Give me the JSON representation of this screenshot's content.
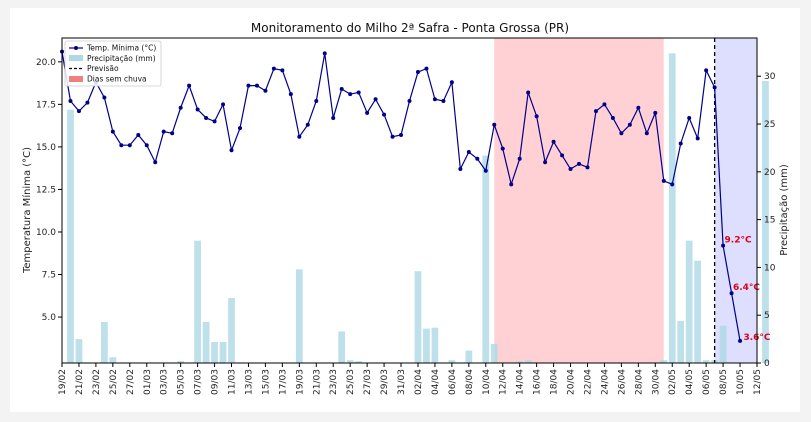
{
  "chart_data": {
    "type": "line",
    "title": "Monitoramento do Milho 2ª Safra - Ponta Grossa (PR)",
    "ylabel_left": "Temperatura Mínima (°C)",
    "ylabel_right": "Precipitação (mm)",
    "ylim_left": [
      2.3,
      21.4
    ],
    "ylim_right": [
      0,
      34
    ],
    "yticks_left": [
      "5.0",
      "7.5",
      "10.0",
      "12.5",
      "15.0",
      "17.5",
      "20.0"
    ],
    "yticks_right": [
      "0",
      "5",
      "10",
      "15",
      "20",
      "25",
      "30"
    ],
    "start_date": "2025-02-19",
    "end_date": "2025-05-12",
    "xtick_labels": [
      "19/02",
      "21/02",
      "23/02",
      "25/02",
      "27/02",
      "01/03",
      "03/03",
      "05/03",
      "07/03",
      "09/03",
      "11/03",
      "13/03",
      "15/03",
      "17/03",
      "19/03",
      "21/03",
      "23/03",
      "25/03",
      "27/03",
      "29/03",
      "31/03",
      "02/04",
      "04/04",
      "06/04",
      "08/04",
      "10/04",
      "12/04",
      "14/04",
      "16/04",
      "18/04",
      "20/04",
      "22/04",
      "24/04",
      "26/04",
      "28/04",
      "30/04",
      "02/05",
      "04/05",
      "06/05",
      "08/05",
      "10/05",
      "12/05"
    ],
    "temperature_series": {
      "name": "Temp. Mínima (°C)",
      "color": "#00008b",
      "values": [
        20.6,
        17.7,
        17.1,
        17.6,
        18.8,
        17.9,
        15.9,
        15.1,
        15.1,
        15.7,
        15.1,
        14.1,
        15.9,
        15.8,
        17.3,
        18.6,
        17.2,
        16.7,
        16.5,
        17.5,
        14.8,
        16.1,
        18.6,
        18.6,
        18.3,
        19.6,
        19.5,
        18.1,
        15.6,
        16.3,
        17.7,
        20.5,
        16.7,
        18.4,
        18.1,
        18.2,
        17.0,
        17.8,
        16.9,
        15.6,
        15.7,
        17.7,
        19.4,
        19.6,
        17.8,
        17.7,
        18.8,
        13.7,
        14.7,
        14.3,
        13.6,
        16.3,
        14.9,
        12.8,
        14.3,
        18.2,
        16.8,
        14.1,
        15.3,
        14.5,
        13.7,
        14.0,
        13.8,
        17.1,
        17.5,
        16.7,
        15.8,
        16.3,
        17.3,
        15.8,
        17.0,
        13.0,
        12.8,
        15.2,
        16.7,
        15.5,
        19.5,
        18.5,
        9.2,
        6.4,
        3.6
      ]
    },
    "precipitation_series": {
      "name": "Precipitação (mm)",
      "color": "#add8e6",
      "bars": [
        [
          1,
          26.5
        ],
        [
          2,
          2.5
        ],
        [
          5,
          4.3
        ],
        [
          6,
          0.6
        ],
        [
          14,
          0.2
        ],
        [
          16,
          12.8
        ],
        [
          17,
          4.3
        ],
        [
          18,
          2.2
        ],
        [
          19,
          2.2
        ],
        [
          20,
          6.8
        ],
        [
          28,
          9.8
        ],
        [
          33,
          3.3
        ],
        [
          34,
          0.3
        ],
        [
          35,
          0.2
        ],
        [
          42,
          9.6
        ],
        [
          43,
          3.6
        ],
        [
          44,
          3.7
        ],
        [
          46,
          0.3
        ],
        [
          48,
          1.3
        ],
        [
          50,
          21.7
        ],
        [
          51,
          2.0
        ],
        [
          54,
          0.2
        ],
        [
          55,
          0.3
        ],
        [
          71,
          0.3
        ],
        [
          72,
          32.4
        ],
        [
          73,
          4.4
        ],
        [
          74,
          12.8
        ],
        [
          75,
          10.7
        ],
        [
          76,
          0.3
        ],
        [
          77,
          0.3
        ],
        [
          78,
          3.9
        ],
        [
          83,
          29.5
        ]
      ]
    },
    "dry_period": {
      "name": "Dias sem chuva",
      "start_day": 51,
      "end_day": 71,
      "color": "#ffcccf"
    },
    "forecast": {
      "name": "Previsão",
      "start_day": 77,
      "end_day": 82,
      "color": "#dedeff"
    },
    "annotations": [
      {
        "label": "9.2°C",
        "day": 80,
        "value": 9.2
      },
      {
        "label": "6.4°C",
        "day": 81,
        "value": 6.4
      },
      {
        "label": "3.6°C",
        "day": 82,
        "value": 3.6
      }
    ],
    "legend": {
      "position": "top-left"
    },
    "grid": false
  }
}
